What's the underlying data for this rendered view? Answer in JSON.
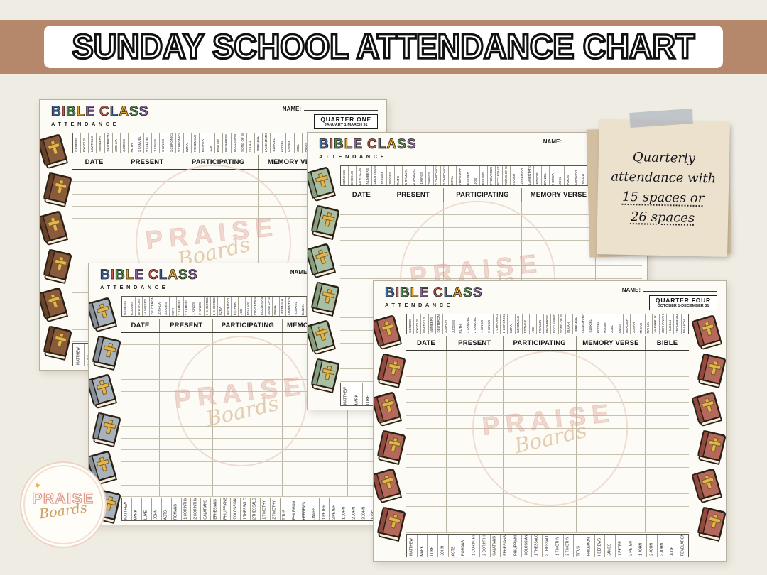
{
  "banner": {
    "title": "SUNDAY SCHOOL ATTENDANCE CHART",
    "bg_color": "#b5886b"
  },
  "sticky_note": {
    "lines": [
      {
        "text": "Quarterly",
        "underline": false
      },
      {
        "text": "attendance with",
        "underline": false
      },
      {
        "text": "15 spaces or",
        "underline": true
      },
      {
        "text": "26 spaces",
        "underline": true
      }
    ]
  },
  "logo": {
    "word": "PRAISE",
    "script": "Boards"
  },
  "watermark": {
    "word": "PRAISE",
    "script": "Boards"
  },
  "old_testament_books": [
    "GENESIS",
    "EXODUS",
    "LEVITICUS",
    "NUMBERS",
    "DEUTERONOMY",
    "JOSHUA",
    "JUDGES",
    "RUTH",
    "1 SAMUEL",
    "2 SAMUEL",
    "1 KINGS",
    "2 KINGS",
    "1 CHRONICLES",
    "2 CHRONICLES",
    "EZRA",
    "NEHEMIAH",
    "ESTHER",
    "JOB",
    "PSALMS",
    "PROVERBS",
    "ECCLESIASTES",
    "SONG OF SOLOMON",
    "ISAIAH",
    "JEREMIAH",
    "LAMENTATIONS",
    "EZEKIEL",
    "DANIEL",
    "HOSEA",
    "JOEL",
    "AMOS",
    "OBADIAH",
    "JONAH",
    "MICAH",
    "NAHUM",
    "HABAKKUK",
    "ZEPHANIAH",
    "HAGGAI",
    "ZECHARIAH",
    "MALACHI"
  ],
  "new_testament_books": [
    "MATTHEW",
    "MARK",
    "LUKE",
    "JOHN",
    "ACTS",
    "ROMANS",
    "1 CORINTHIANS",
    "2 CORINTHIANS",
    "GALATIANS",
    "EPHESIANS",
    "PHILIPPIANS",
    "COLOSSIANS",
    "1 THESSALONIANS",
    "2 THESSALONIANS",
    "1 TIMOTHY",
    "2 TIMOTHY",
    "TITUS",
    "PHILEMON",
    "HEBREWS",
    "JAMES",
    "1 PETER",
    "2 PETER",
    "1 JOHN",
    "2 JOHN",
    "3 JOHN",
    "JUDE",
    "REVELATION"
  ],
  "title_letter_colors": [
    "#3f6fae",
    "#c9564c",
    "#4f8f55",
    "#dfa32e",
    "#8a62a8",
    "#c9564c",
    "#3f6fae",
    "#dfa32e",
    "#4f8f55",
    "#8a62a8"
  ],
  "sheets": [
    {
      "id": "quarter-one",
      "title": "BIBLE CLASS",
      "subtitle": "ATTENDANCE",
      "name_label": "NAME:",
      "quarter": "QUARTER ONE",
      "date_range": "JANUARY 1-MARCH 31",
      "columns": [
        "DATE",
        "PRESENT",
        "PARTICIPATING",
        "MEMORY VERSE",
        ""
      ],
      "rows": 14,
      "bibles_left": true,
      "bibles_right": false,
      "bible_colors": {
        "cover": "#8a5a3c",
        "spine": "#684128",
        "cross": "#e3b54d"
      }
    },
    {
      "id": "quarter-two",
      "title": "BIBLE CLASS",
      "subtitle": "ATTENDANCE",
      "name_label": "NAME:",
      "quarter": "",
      "date_range": "",
      "columns": [
        "DATE",
        "PRESENT",
        "PARTICIPATING",
        "MEMORY VERSE",
        ""
      ],
      "rows": 14,
      "bibles_left": true,
      "bibles_right": false,
      "bible_colors": {
        "cover": "#a9bfa4",
        "spine": "#84a07e",
        "cross": "#e3b54d"
      }
    },
    {
      "id": "quarter-three",
      "title": "BIBLE CLASS",
      "subtitle": "ATTENDANCE",
      "name_label": "NAME:",
      "quarter": "",
      "date_range": "",
      "columns": [
        "DATE",
        "PRESENT",
        "PARTICIPATING",
        "MEMORY VERSE",
        ""
      ],
      "rows": 14,
      "bibles_left": true,
      "bibles_right": false,
      "bible_colors": {
        "cover": "#a7b2bc",
        "spine": "#84919d",
        "cross": "#e3b54d"
      }
    },
    {
      "id": "quarter-four",
      "title": "BIBLE CLASS",
      "subtitle": "ATTENDANCE",
      "name_label": "NAME:",
      "quarter": "QUARTER FOUR",
      "date_range": "OCTOBER 1-DECEMBER 31",
      "columns": [
        "DATE",
        "PRESENT",
        "PARTICIPATING",
        "MEMORY VERSE",
        "BIBLE"
      ],
      "rows": 14,
      "bibles_left": true,
      "bibles_right": true,
      "bible_colors": {
        "cover": "#b5685c",
        "spine": "#94493f",
        "cross": "#e3b54d"
      }
    }
  ]
}
